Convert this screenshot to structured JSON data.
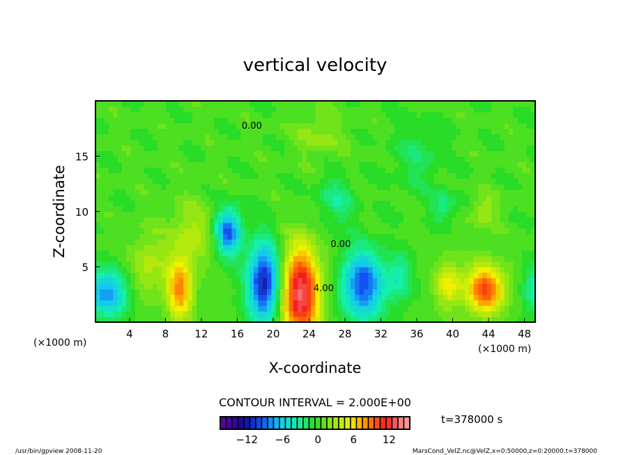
{
  "chart_data": {
    "type": "heatmap",
    "title": "vertical velocity",
    "xlabel": "X-coordinate",
    "ylabel": "Z-coordinate",
    "x_units": "(×1000 m)",
    "y_units": "(×1000 m)",
    "xlim": [
      0.2,
      49.2
    ],
    "ylim": [
      0,
      20
    ],
    "xticks": [
      4,
      8,
      12,
      16,
      20,
      24,
      28,
      32,
      36,
      40,
      44,
      48
    ],
    "yticks": [
      5,
      10,
      15
    ],
    "contour_interval_text": "CONTOUR INTERVAL = 2.000E+00",
    "contour_labels": [
      {
        "text": "4.00",
        "x": 24.5,
        "z": 2.8
      },
      {
        "text": "0.00",
        "x": 26.4,
        "z": 6.8
      },
      {
        "text": "0.00",
        "x": 16.5,
        "z": 17.5
      }
    ],
    "colorbar": {
      "min": -16,
      "max": 15,
      "step": 1,
      "ticks": [
        -12,
        -6,
        0,
        6,
        12
      ]
    },
    "features": [
      {
        "x": 1.5,
        "z": 2.6,
        "amp": -8,
        "sx": 1.6,
        "sz": 1.5
      },
      {
        "x": 9.6,
        "z": 3.0,
        "amp": 8,
        "sx": 1.0,
        "sz": 2.0
      },
      {
        "x": 15.0,
        "z": 8.2,
        "amp": -10,
        "sx": 1.0,
        "sz": 1.5
      },
      {
        "x": 19.0,
        "z": 3.6,
        "amp": -12,
        "sx": 1.3,
        "sz": 2.5
      },
      {
        "x": 23.0,
        "z": 2.6,
        "amp": 13,
        "sx": 1.5,
        "sz": 3.0
      },
      {
        "x": 30.0,
        "z": 3.4,
        "amp": -10,
        "sx": 1.6,
        "sz": 2.2
      },
      {
        "x": 34.0,
        "z": 4.0,
        "amp": -4,
        "sx": 1.0,
        "sz": 1.5
      },
      {
        "x": 39.5,
        "z": 3.5,
        "amp": 5,
        "sx": 1.0,
        "sz": 1.5
      },
      {
        "x": 43.6,
        "z": 3.0,
        "amp": 10,
        "sx": 1.5,
        "sz": 1.5
      },
      {
        "x": 49.0,
        "z": 3.0,
        "amp": -4,
        "sx": 0.8,
        "sz": 1.5
      },
      {
        "x": 11.0,
        "z": 8.0,
        "amp": 3,
        "sx": 2.0,
        "sz": 2.0
      },
      {
        "x": 27.0,
        "z": 11.0,
        "amp": -3,
        "sx": 1.5,
        "sz": 1.5
      },
      {
        "x": 6.0,
        "z": 5.0,
        "amp": 3,
        "sx": 1.5,
        "sz": 2.0
      },
      {
        "x": 43.5,
        "z": 10.0,
        "amp": 3,
        "sx": 1.0,
        "sz": 1.0
      },
      {
        "x": 39.0,
        "z": 10.5,
        "amp": -3,
        "sx": 1.0,
        "sz": 1.0
      },
      {
        "x": 25.0,
        "z": 17.0,
        "amp": 2,
        "sx": 2.0,
        "sz": 1.5
      },
      {
        "x": 36.0,
        "z": 15.0,
        "amp": -2,
        "sx": 2.0,
        "sz": 2.0
      }
    ],
    "time_label": "t=378000 s"
  },
  "footer": {
    "left": "/usr/bin/gpview  2008-11-20",
    "right": "MarsCond_VelZ.nc@VelZ,x=0:50000,z=0:20000,t=378000"
  }
}
